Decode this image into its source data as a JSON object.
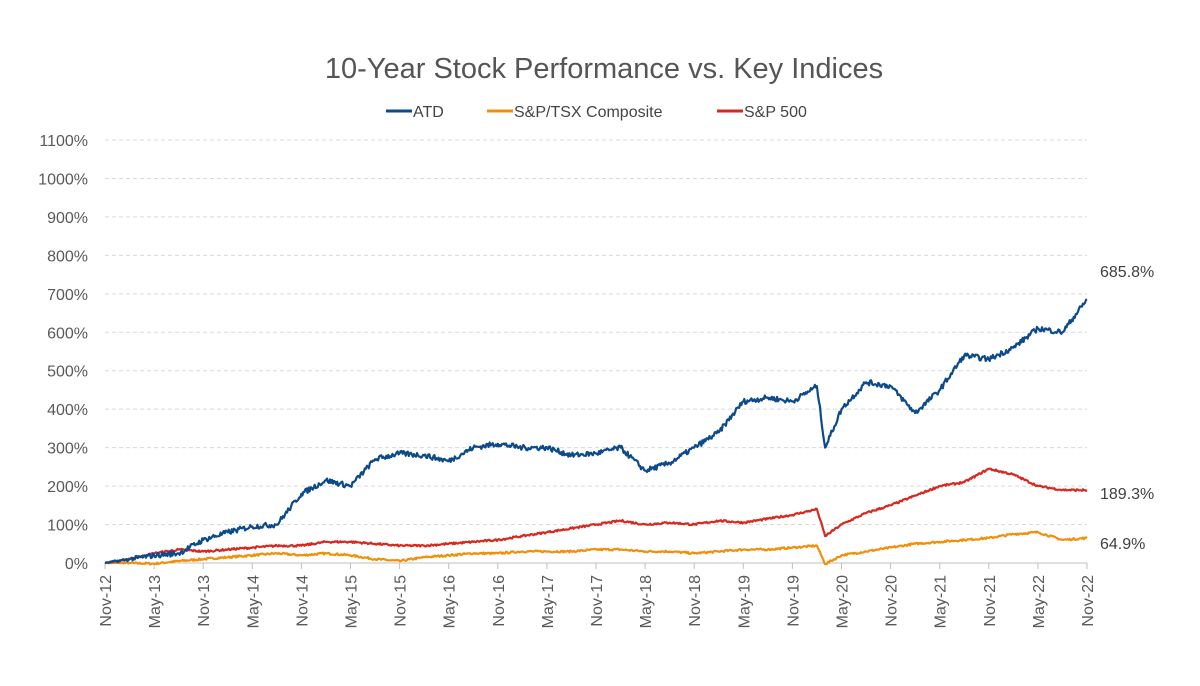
{
  "chart_data": {
    "type": "line",
    "title": "10-Year Stock Performance vs. Key Indices",
    "xlabel": "",
    "ylabel": "",
    "x_ticks": [
      "Nov-12",
      "May-13",
      "Nov-13",
      "May-14",
      "Nov-14",
      "May-15",
      "Nov-15",
      "May-16",
      "Nov-16",
      "May-17",
      "Nov-17",
      "May-18",
      "Nov-18",
      "May-19",
      "Nov-19",
      "May-20",
      "Nov-20",
      "May-21",
      "Nov-21",
      "May-22",
      "Nov-22"
    ],
    "y_ticks": [
      "0%",
      "100%",
      "200%",
      "300%",
      "400%",
      "500%",
      "600%",
      "700%",
      "800%",
      "900%",
      "1000%",
      "1100%"
    ],
    "ylim": [
      0,
      1100
    ],
    "x_unit": "months since Nov-12",
    "xlim": [
      0,
      120
    ],
    "grid": "horizontal dashed",
    "legend_position": "top-center",
    "series": [
      {
        "name": "ATD",
        "color": "#0c4a8a",
        "end_label": "685.8%",
        "points": [
          [
            0,
            0
          ],
          [
            3,
            10
          ],
          [
            6,
            20
          ],
          [
            9,
            25
          ],
          [
            12,
            60
          ],
          [
            15,
            80
          ],
          [
            18,
            95
          ],
          [
            21,
            100
          ],
          [
            24,
            180
          ],
          [
            27,
            215
          ],
          [
            30,
            200
          ],
          [
            33,
            270
          ],
          [
            36,
            285
          ],
          [
            39,
            280
          ],
          [
            42,
            265
          ],
          [
            45,
            300
          ],
          [
            48,
            310
          ],
          [
            51,
            300
          ],
          [
            54,
            300
          ],
          [
            57,
            280
          ],
          [
            60,
            285
          ],
          [
            63,
            300
          ],
          [
            66,
            240
          ],
          [
            69,
            260
          ],
          [
            72,
            300
          ],
          [
            75,
            340
          ],
          [
            78,
            420
          ],
          [
            81,
            430
          ],
          [
            84,
            420
          ],
          [
            87,
            460
          ],
          [
            88,
            300
          ],
          [
            90,
            400
          ],
          [
            93,
            470
          ],
          [
            96,
            460
          ],
          [
            99,
            390
          ],
          [
            102,
            450
          ],
          [
            105,
            540
          ],
          [
            108,
            530
          ],
          [
            111,
            560
          ],
          [
            114,
            610
          ],
          [
            117,
            600
          ],
          [
            120,
            685.8
          ]
        ]
      },
      {
        "name": "S&P/TSX Composite",
        "color": "#f0900a",
        "end_label": "64.9%",
        "points": [
          [
            0,
            0
          ],
          [
            3,
            0
          ],
          [
            6,
            -2
          ],
          [
            9,
            5
          ],
          [
            12,
            10
          ],
          [
            15,
            15
          ],
          [
            18,
            20
          ],
          [
            21,
            25
          ],
          [
            24,
            20
          ],
          [
            27,
            25
          ],
          [
            30,
            20
          ],
          [
            33,
            10
          ],
          [
            36,
            5
          ],
          [
            39,
            15
          ],
          [
            42,
            20
          ],
          [
            45,
            25
          ],
          [
            48,
            25
          ],
          [
            51,
            30
          ],
          [
            54,
            30
          ],
          [
            57,
            30
          ],
          [
            60,
            35
          ],
          [
            63,
            35
          ],
          [
            66,
            30
          ],
          [
            69,
            30
          ],
          [
            72,
            25
          ],
          [
            75,
            30
          ],
          [
            78,
            35
          ],
          [
            81,
            35
          ],
          [
            84,
            40
          ],
          [
            87,
            45
          ],
          [
            88,
            -3
          ],
          [
            90,
            20
          ],
          [
            93,
            30
          ],
          [
            96,
            40
          ],
          [
            99,
            50
          ],
          [
            102,
            55
          ],
          [
            105,
            60
          ],
          [
            108,
            65
          ],
          [
            111,
            75
          ],
          [
            114,
            80
          ],
          [
            117,
            60
          ],
          [
            120,
            64.9
          ]
        ]
      },
      {
        "name": "S&P 500",
        "color": "#d42a20",
        "end_label": "189.3%",
        "points": [
          [
            0,
            0
          ],
          [
            3,
            10
          ],
          [
            6,
            25
          ],
          [
            9,
            35
          ],
          [
            12,
            30
          ],
          [
            15,
            35
          ],
          [
            18,
            40
          ],
          [
            21,
            45
          ],
          [
            24,
            45
          ],
          [
            27,
            55
          ],
          [
            30,
            55
          ],
          [
            33,
            50
          ],
          [
            36,
            45
          ],
          [
            39,
            45
          ],
          [
            42,
            50
          ],
          [
            45,
            55
          ],
          [
            48,
            60
          ],
          [
            51,
            70
          ],
          [
            54,
            80
          ],
          [
            57,
            90
          ],
          [
            60,
            100
          ],
          [
            63,
            110
          ],
          [
            66,
            100
          ],
          [
            69,
            105
          ],
          [
            72,
            100
          ],
          [
            75,
            110
          ],
          [
            78,
            105
          ],
          [
            81,
            115
          ],
          [
            84,
            125
          ],
          [
            87,
            140
          ],
          [
            88,
            70
          ],
          [
            90,
            100
          ],
          [
            93,
            130
          ],
          [
            96,
            150
          ],
          [
            99,
            175
          ],
          [
            102,
            200
          ],
          [
            105,
            210
          ],
          [
            108,
            245
          ],
          [
            111,
            230
          ],
          [
            114,
            200
          ],
          [
            117,
            190
          ],
          [
            120,
            189.3
          ]
        ]
      }
    ]
  }
}
